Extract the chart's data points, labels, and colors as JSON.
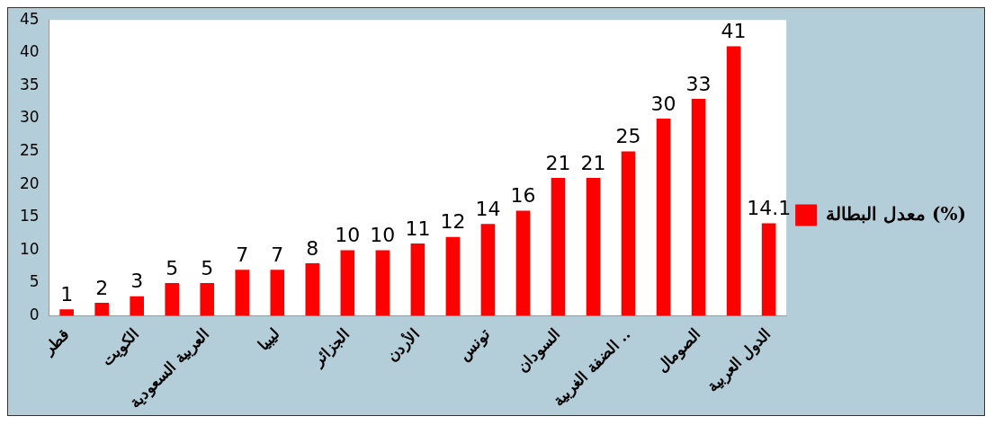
{
  "chart_data": {
    "type": "bar",
    "categories": [
      "قطر",
      null,
      "الكويت",
      null,
      "العربية السعودية",
      null,
      "ليبيا",
      null,
      "الجزائر",
      null,
      "الأردن",
      null,
      "تونس",
      null,
      "السودان",
      null,
      "الضفة الغربية ..",
      null,
      "الصومال",
      null,
      "الدول العربية"
    ],
    "series": [
      {
        "name": "معدل البطالة (%)",
        "color": "#ff0000",
        "values": [
          1,
          2,
          3,
          5,
          5,
          7,
          7,
          8,
          10,
          10,
          11,
          12,
          14,
          16,
          21,
          21,
          25,
          30,
          33,
          41,
          14.1
        ]
      }
    ],
    "ylim": [
      0,
      45
    ],
    "yticks": [
      0,
      5,
      10,
      15,
      20,
      25,
      30,
      35,
      40,
      45
    ],
    "data_labels": true,
    "legend": "right",
    "grid": false
  }
}
